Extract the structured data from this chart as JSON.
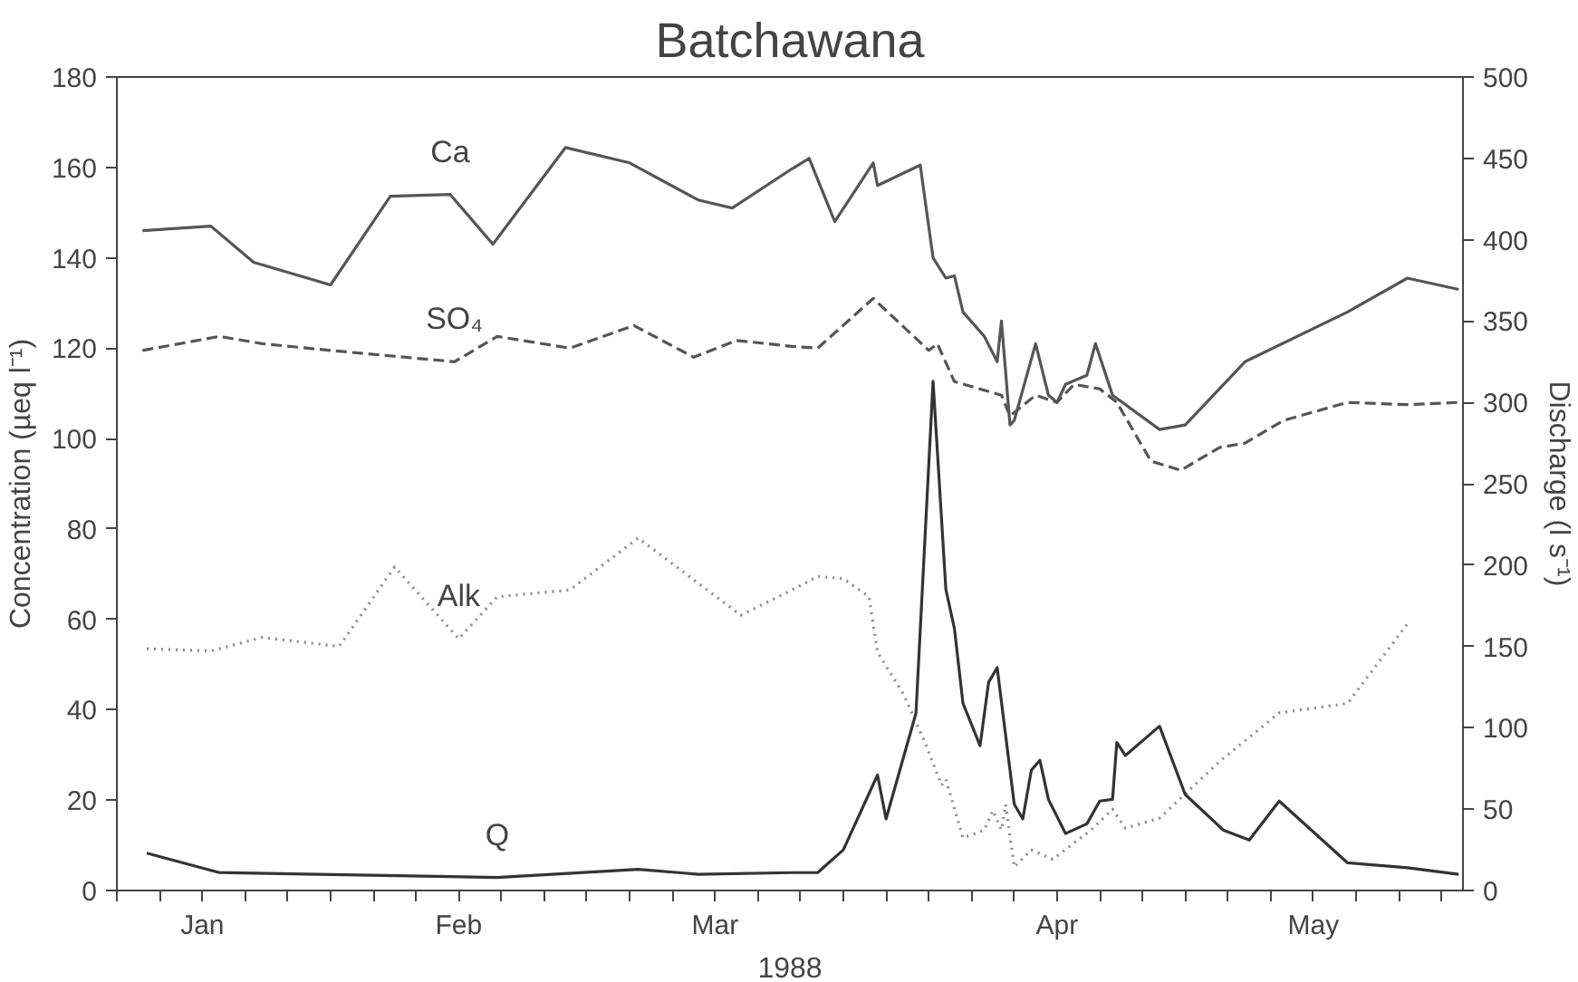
{
  "chart_data": {
    "type": "line",
    "title": "Batchawana",
    "xlabel": "1988",
    "ylabel": "Concentration (µeq l⁻¹)",
    "y2label": "Discharge (l s⁻¹)",
    "xlim": [
      "1988-01-05",
      "1988-06-10T12:00"
    ],
    "xticks": [
      {
        "value": "1988-01-05",
        "label": null
      },
      {
        "value": "1988-01-10",
        "label": null
      },
      {
        "value": "1988-01-15",
        "label": "Jan"
      },
      {
        "value": "1988-01-20",
        "label": null
      },
      {
        "value": "1988-01-25",
        "label": null
      },
      {
        "value": "1988-01-30",
        "label": null
      },
      {
        "value": "1988-02-04",
        "label": null
      },
      {
        "value": "1988-02-09",
        "label": null
      },
      {
        "value": "1988-02-14",
        "label": "Feb"
      },
      {
        "value": "1988-02-19",
        "label": null
      },
      {
        "value": "1988-02-24",
        "label": null
      },
      {
        "value": "1988-02-29",
        "label": null
      },
      {
        "value": "1988-03-05",
        "label": null
      },
      {
        "value": "1988-03-10",
        "label": null
      },
      {
        "value": "1988-03-15",
        "label": "Mar"
      },
      {
        "value": "1988-03-20",
        "label": null
      },
      {
        "value": "1988-03-25",
        "label": null
      },
      {
        "value": "1988-03-30",
        "label": null
      },
      {
        "value": "1988-04-04",
        "label": null
      },
      {
        "value": "1988-04-09",
        "label": null
      },
      {
        "value": "1988-04-14",
        "label": null
      },
      {
        "value": "1988-04-19",
        "label": null
      },
      {
        "value": "1988-04-24",
        "label": "Apr"
      },
      {
        "value": "1988-04-29",
        "label": null
      },
      {
        "value": "1988-05-04",
        "label": null
      },
      {
        "value": "1988-05-09",
        "label": null
      },
      {
        "value": "1988-05-14",
        "label": null
      },
      {
        "value": "1988-05-19",
        "label": null
      },
      {
        "value": "1988-05-24",
        "label": "May"
      },
      {
        "value": "1988-05-29",
        "label": null
      },
      {
        "value": "1988-06-03",
        "label": null
      },
      {
        "value": "1988-06-08",
        "label": null
      }
    ],
    "ylim": [
      0,
      180
    ],
    "yticks": [
      0,
      20,
      40,
      60,
      80,
      100,
      120,
      140,
      160,
      180
    ],
    "y2lim": [
      0,
      500
    ],
    "y2ticks": [
      0,
      50,
      100,
      150,
      200,
      250,
      300,
      350,
      400,
      450,
      500
    ],
    "grid": false,
    "marker": "none",
    "series": [
      {
        "name": "Ca",
        "color": "#555555",
        "line_style": "solid",
        "x": [
          "1988-01-08",
          "1988-01-16",
          "1988-01-21",
          "1988-01-30",
          "1988-02-06",
          "1988-02-13",
          "1988-02-18",
          "1988-02-26T12:00",
          "1988-03-05",
          "1988-03-13",
          "1988-03-17",
          "1988-03-24",
          "1988-03-26",
          "1988-03-29",
          "1988-04-02T12:00",
          "1988-04-03",
          "1988-04-08",
          "1988-04-09T12:00",
          "1988-04-11",
          "1988-04-12",
          "1988-04-13",
          "1988-04-15T12:00",
          "1988-04-17",
          "1988-04-17T12:00",
          "1988-04-18T12:00",
          "1988-04-19",
          "1988-04-21T12:00",
          "1988-04-23",
          "1988-04-24",
          "1988-04-25",
          "1988-04-27T12:00",
          "1988-04-28T12:00",
          "1988-04-30T12:00",
          "1988-05-06",
          "1988-05-09",
          "1988-05-16",
          "1988-05-28",
          "1988-06-04",
          "1988-06-10"
        ],
        "values": [
          146,
          147,
          139,
          134,
          153.6,
          154,
          143,
          164.4,
          161,
          152.8,
          151,
          159.7,
          162,
          148,
          161,
          156,
          160.5,
          140,
          135.5,
          136,
          128,
          122.6,
          117,
          126,
          103,
          104,
          121,
          109.6,
          108,
          112,
          114,
          121,
          109.6,
          102,
          103,
          117,
          128,
          135.5,
          133
        ]
      },
      {
        "name": "SO₄",
        "color": "#555555",
        "line_style": "dashed",
        "x": [
          "1988-01-08",
          "1988-01-17",
          "1988-01-22",
          "1988-01-30",
          "1988-02-13T12:00",
          "1988-02-18T12:00",
          "1988-02-27",
          "1988-03-05T12:00",
          "1988-03-12T12:00",
          "1988-03-17T12:00",
          "1988-03-24",
          "1988-03-27",
          "1988-04-02T12:00",
          "1988-04-09",
          "1988-04-10",
          "1988-04-12",
          "1988-04-17T12:00",
          "1988-04-18T12:00",
          "1988-04-21T12:00",
          "1988-04-24",
          "1988-04-26",
          "1988-04-29",
          "1988-05-01",
          "1988-05-05",
          "1988-05-08T12:00",
          "1988-05-13",
          "1988-05-16",
          "1988-05-20T12:00",
          "1988-05-28",
          "1988-06-04",
          "1988-06-10"
        ],
        "values": [
          119.5,
          122.6,
          121,
          119.5,
          117,
          122.6,
          120,
          125,
          118,
          121.7,
          120.4,
          120,
          131,
          119.5,
          121,
          112.6,
          109.6,
          105,
          109.6,
          108,
          112,
          111,
          108,
          95,
          93,
          98,
          99,
          104,
          108,
          107.5,
          108
        ]
      },
      {
        "name": "Alk",
        "color": "#888888",
        "line_style": "dotted",
        "x": [
          "1988-01-08T12:00",
          "1988-01-16",
          "1988-01-22",
          "1988-01-31",
          "1988-02-06T12:00",
          "1988-02-14",
          "1988-02-18T12:00",
          "1988-02-27",
          "1988-03-06",
          "1988-03-18",
          "1988-03-24",
          "1988-03-27",
          "1988-03-30",
          "1988-04-02",
          "1988-04-03",
          "1988-04-06",
          "1988-04-08T12:00",
          "1988-04-10T12:00",
          "1988-04-11",
          "1988-04-13",
          "1988-04-15T12:00",
          "1988-04-16T12:00",
          "1988-04-17T12:00",
          "1988-04-18",
          "1988-04-19",
          "1988-04-21",
          "1988-04-23T12:00",
          "1988-04-28",
          "1988-04-30T12:00",
          "1988-05-02",
          "1988-05-06",
          "1988-05-13",
          "1988-05-20",
          "1988-05-28",
          "1988-06-04"
        ],
        "values": [
          53.5,
          53,
          56,
          54,
          71.6,
          55.7,
          65,
          66.5,
          78,
          60.9,
          66.5,
          69.5,
          69,
          65,
          52.7,
          43.6,
          33,
          23.3,
          24.6,
          11.6,
          13.4,
          17.7,
          13.4,
          19,
          5.2,
          9,
          6.9,
          13.4,
          18,
          13.8,
          16,
          28.5,
          39.3,
          41.4,
          59
        ]
      },
      {
        "name": "Q",
        "color": "#333333",
        "line_style": "solid",
        "axis": "y2",
        "x": [
          "1988-01-08T12:00",
          "1988-01-17",
          "1988-01-28T12:00",
          "1988-02-18T12:00",
          "1988-03-06",
          "1988-03-13",
          "1988-03-24",
          "1988-03-27",
          "1988-03-30",
          "1988-04-03",
          "1988-04-04",
          "1988-04-07T12:00",
          "1988-04-09T12:00",
          "1988-04-11",
          "1988-04-12",
          "1988-04-13",
          "1988-04-15",
          "1988-04-16",
          "1988-04-17",
          "1988-04-19",
          "1988-04-20",
          "1988-04-21",
          "1988-04-22",
          "1988-04-23",
          "1988-04-25",
          "1988-04-27T12:00",
          "1988-04-29",
          "1988-04-30T12:00",
          "1988-05-01",
          "1988-05-02",
          "1988-05-06",
          "1988-05-09",
          "1988-05-13T12:00",
          "1988-05-16T12:00",
          "1988-05-20",
          "1988-05-28",
          "1988-06-04",
          "1988-06-10"
        ],
        "values": [
          23,
          11,
          10,
          8,
          13,
          10,
          11,
          11,
          25,
          71,
          44,
          109,
          313,
          185,
          161,
          115,
          89,
          128,
          137,
          53,
          44,
          74,
          80,
          56,
          35,
          41,
          55,
          56,
          91,
          83,
          101,
          59,
          37,
          31,
          55,
          17,
          14,
          10
        ]
      }
    ]
  }
}
